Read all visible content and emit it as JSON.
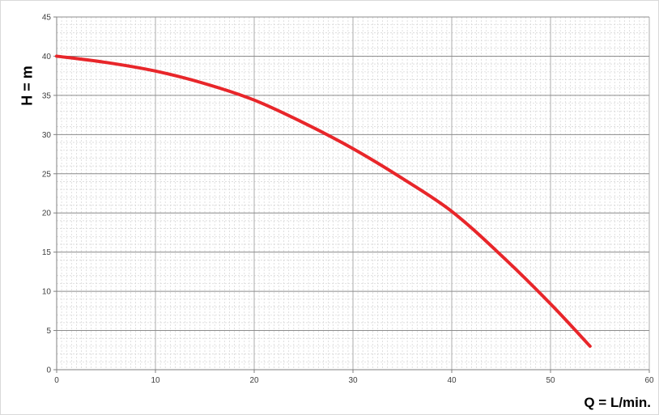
{
  "chart_data": {
    "type": "line",
    "title": "",
    "xlabel": "Q = L/min.",
    "ylabel": "H = m",
    "xlim": [
      0,
      60
    ],
    "ylim": [
      0,
      45
    ],
    "x_ticks": [
      0,
      10,
      20,
      30,
      40,
      50,
      60
    ],
    "y_ticks": [
      0,
      5,
      10,
      15,
      20,
      25,
      30,
      35,
      40,
      45
    ],
    "grid": true,
    "legend": "none",
    "series": [
      {
        "color": "#e8262a",
        "x": [
          0,
          5,
          10,
          15,
          20,
          25,
          30,
          35,
          40,
          45,
          50,
          54
        ],
        "y": [
          40,
          39.2,
          38.1,
          36.5,
          34.4,
          31.5,
          28.2,
          24.4,
          20.2,
          14.6,
          8.4,
          3
        ]
      }
    ]
  }
}
